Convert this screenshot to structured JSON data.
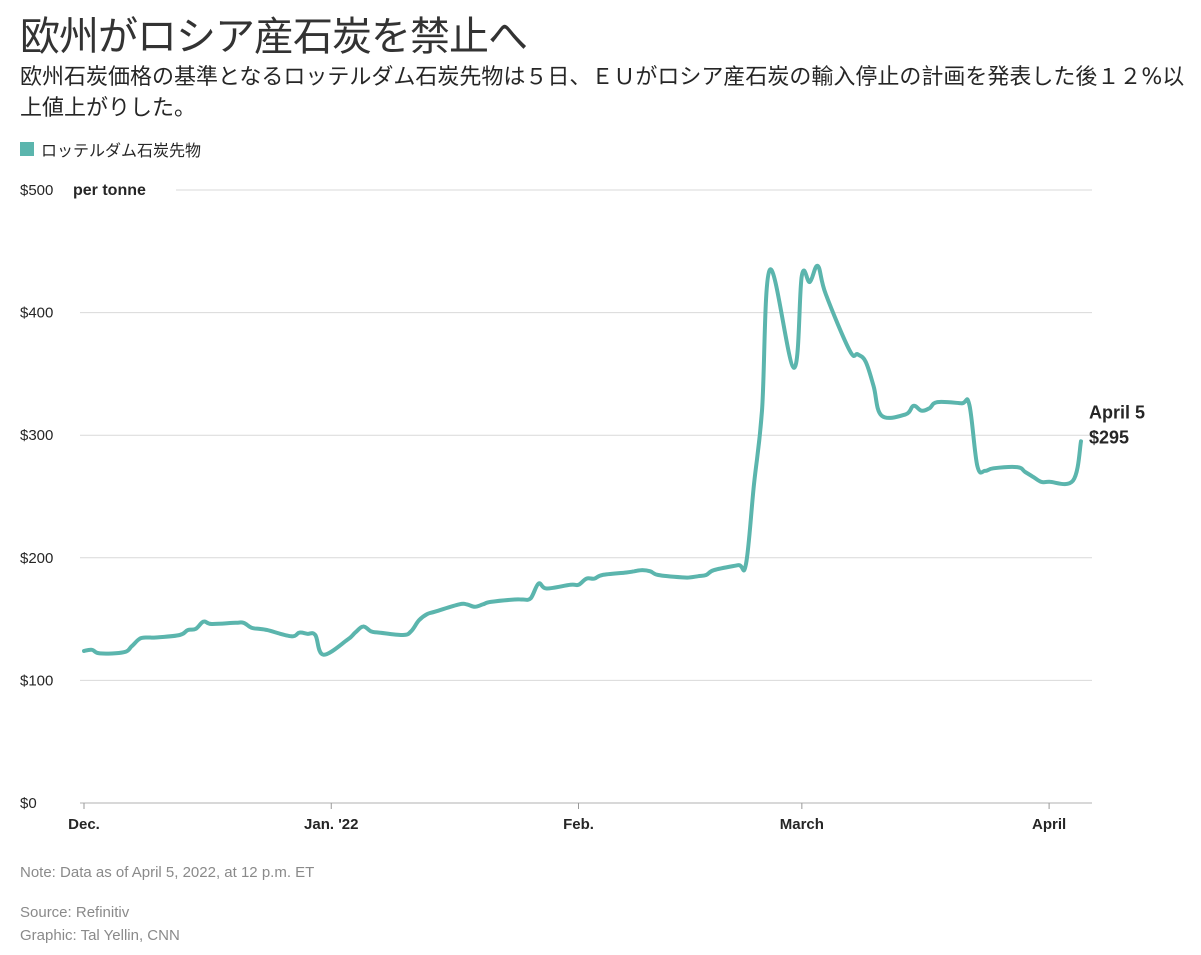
{
  "header": {
    "title": "欧州がロシア産石炭を禁止へ",
    "subtitle": "欧州石炭価格の基準となるロッテルダム石炭先物は５日、ＥＵがロシア産石炭の輸入停止の計画を発表した後１２%以上値上がりした。"
  },
  "legend": {
    "label": "ロッテルダム石炭先物",
    "color": "#5bb5ad"
  },
  "chart_data": {
    "type": "line",
    "title": "欧州がロシア産石炭を禁止へ",
    "ylabel": "per tonne",
    "ylim": [
      0,
      500
    ],
    "yticks": [
      {
        "value": 0,
        "label": "$0"
      },
      {
        "value": 100,
        "label": "$100"
      },
      {
        "value": 200,
        "label": "$200"
      },
      {
        "value": 300,
        "label": "$300"
      },
      {
        "value": 400,
        "label": "$400"
      },
      {
        "value": 500,
        "label": "$500"
      }
    ],
    "xlim": [
      "2021-12-01",
      "2022-04-05"
    ],
    "xticks": [
      {
        "date": "2021-12-01",
        "label": "Dec."
      },
      {
        "date": "2022-01-01",
        "label": "Jan. '22"
      },
      {
        "date": "2022-02-01",
        "label": "Feb."
      },
      {
        "date": "2022-03-01",
        "label": "March"
      },
      {
        "date": "2022-04-01",
        "label": "April"
      }
    ],
    "grid": true,
    "line_color": "#5bb5ad",
    "series": [
      {
        "name": "ロッテルダム石炭先物",
        "points": [
          [
            "2021-12-01",
            124
          ],
          [
            "2021-12-02",
            125
          ],
          [
            "2021-12-03",
            122
          ],
          [
            "2021-12-06",
            123
          ],
          [
            "2021-12-07",
            128
          ],
          [
            "2021-12-08",
            134
          ],
          [
            "2021-12-09",
            135
          ],
          [
            "2021-12-10",
            135
          ],
          [
            "2021-12-13",
            137
          ],
          [
            "2021-12-14",
            141
          ],
          [
            "2021-12-15",
            142
          ],
          [
            "2021-12-16",
            148
          ],
          [
            "2021-12-17",
            146
          ],
          [
            "2021-12-20",
            147
          ],
          [
            "2021-12-21",
            147
          ],
          [
            "2021-12-22",
            143
          ],
          [
            "2021-12-23",
            142
          ],
          [
            "2021-12-24",
            141
          ],
          [
            "2021-12-27",
            136
          ],
          [
            "2021-12-28",
            139
          ],
          [
            "2021-12-29",
            138
          ],
          [
            "2021-12-30",
            137
          ],
          [
            "2021-12-31",
            121
          ],
          [
            "2022-01-03",
            133
          ],
          [
            "2022-01-04",
            139
          ],
          [
            "2022-01-05",
            144
          ],
          [
            "2022-01-06",
            140
          ],
          [
            "2022-01-07",
            139
          ],
          [
            "2022-01-10",
            137
          ],
          [
            "2022-01-11",
            140
          ],
          [
            "2022-01-12",
            149
          ],
          [
            "2022-01-13",
            154
          ],
          [
            "2022-01-14",
            156
          ],
          [
            "2022-01-17",
            162
          ],
          [
            "2022-01-18",
            162
          ],
          [
            "2022-01-19",
            160
          ],
          [
            "2022-01-20",
            162
          ],
          [
            "2022-01-21",
            164
          ],
          [
            "2022-01-24",
            166
          ],
          [
            "2022-01-25",
            166
          ],
          [
            "2022-01-26",
            167
          ],
          [
            "2022-01-27",
            179
          ],
          [
            "2022-01-28",
            175
          ],
          [
            "2022-01-31",
            178
          ],
          [
            "2022-02-01",
            178
          ],
          [
            "2022-02-02",
            183
          ],
          [
            "2022-02-03",
            183
          ],
          [
            "2022-02-04",
            186
          ],
          [
            "2022-02-07",
            188
          ],
          [
            "2022-02-08",
            189
          ],
          [
            "2022-02-09",
            190
          ],
          [
            "2022-02-10",
            189
          ],
          [
            "2022-02-11",
            186
          ],
          [
            "2022-02-14",
            184
          ],
          [
            "2022-02-15",
            184
          ],
          [
            "2022-02-16",
            185
          ],
          [
            "2022-02-17",
            186
          ],
          [
            "2022-02-18",
            190
          ],
          [
            "2022-02-21",
            194
          ],
          [
            "2022-02-22",
            195
          ],
          [
            "2022-02-23",
            260
          ],
          [
            "2022-02-24",
            320
          ],
          [
            "2022-02-25",
            435
          ],
          [
            "2022-02-28",
            355
          ],
          [
            "2022-03-01",
            430
          ],
          [
            "2022-03-02",
            425
          ],
          [
            "2022-03-03",
            438
          ],
          [
            "2022-03-04",
            415
          ],
          [
            "2022-03-07",
            369
          ],
          [
            "2022-03-08",
            366
          ],
          [
            "2022-03-09",
            360
          ],
          [
            "2022-03-10",
            340
          ],
          [
            "2022-03-11",
            316
          ],
          [
            "2022-03-14",
            317
          ],
          [
            "2022-03-15",
            324
          ],
          [
            "2022-03-16",
            320
          ],
          [
            "2022-03-17",
            322
          ],
          [
            "2022-03-18",
            327
          ],
          [
            "2022-03-21",
            326
          ],
          [
            "2022-03-22",
            325
          ],
          [
            "2022-03-23",
            275
          ],
          [
            "2022-03-24",
            271
          ],
          [
            "2022-03-25",
            273
          ],
          [
            "2022-03-28",
            274
          ],
          [
            "2022-03-29",
            270
          ],
          [
            "2022-03-30",
            266
          ],
          [
            "2022-03-31",
            262
          ],
          [
            "2022-04-01",
            262
          ],
          [
            "2022-04-04",
            263
          ],
          [
            "2022-04-05",
            295
          ]
        ]
      }
    ],
    "annotation": {
      "date": "2022-04-05",
      "value": 295,
      "label_line1": "April 5",
      "label_line2": "$295"
    }
  },
  "footer": {
    "note": "Note: Data as of April 5, 2022, at 12 p.m. ET",
    "source": "Source: Refinitiv",
    "credit": "Graphic: Tal Yellin, CNN"
  }
}
